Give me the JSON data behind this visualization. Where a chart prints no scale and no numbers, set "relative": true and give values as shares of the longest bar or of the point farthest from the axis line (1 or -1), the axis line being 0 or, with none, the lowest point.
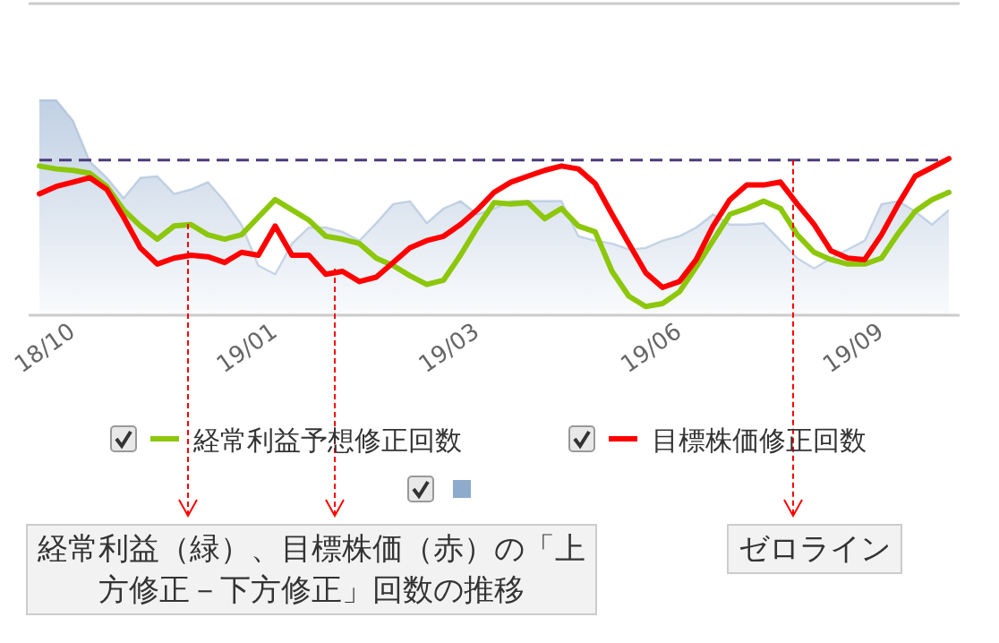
{
  "chart_data": {
    "type": "line",
    "relative": true,
    "legend": "bottom",
    "categories": [
      null,
      null,
      "18/10",
      null,
      null,
      null,
      null,
      null,
      null,
      null,
      null,
      null,
      null,
      null,
      "19/01",
      null,
      null,
      null,
      null,
      null,
      null,
      null,
      null,
      null,
      null,
      null,
      "19/03",
      null,
      null,
      null,
      null,
      null,
      null,
      null,
      null,
      null,
      null,
      null,
      "19/06",
      null,
      null,
      null,
      null,
      null,
      null,
      null,
      null,
      null,
      null,
      null,
      "19/09",
      null,
      null,
      null,
      null
    ],
    "series": [
      {
        "type": "area",
        "color": "#8eaacc",
        "values": [
          0.41,
          0.41,
          0.27,
          -0.01,
          -0.12,
          -0.26,
          -0.12,
          -0.11,
          -0.23,
          -0.2,
          -0.15,
          -0.28,
          -0.44,
          -0.72,
          -0.78,
          -0.57,
          -0.46,
          -0.46,
          -0.49,
          -0.55,
          -0.43,
          -0.3,
          -0.28,
          -0.43,
          -0.33,
          -0.28,
          -0.37,
          -0.33,
          -0.28,
          -0.28,
          -0.28,
          -0.28,
          -0.52,
          -0.55,
          -0.57,
          -0.61,
          -0.6,
          -0.55,
          -0.52,
          -0.46,
          -0.37,
          -0.44,
          -0.44,
          -0.43,
          -0.55,
          -0.67,
          -0.74,
          -0.67,
          -0.61,
          -0.55,
          -0.3,
          -0.28,
          -0.35,
          -0.44,
          -0.34
        ]
      },
      {
        "name": "経常利益予想修正回数",
        "color": "#8cc70a",
        "values": [
          -0.04,
          -0.06,
          -0.07,
          -0.09,
          -0.18,
          -0.34,
          -0.45,
          -0.54,
          -0.45,
          -0.44,
          -0.51,
          -0.54,
          -0.51,
          -0.39,
          -0.27,
          -0.34,
          -0.41,
          -0.52,
          -0.54,
          -0.57,
          -0.67,
          -0.72,
          -0.79,
          -0.85,
          -0.82,
          -0.65,
          -0.46,
          -0.29,
          -0.3,
          -0.29,
          -0.4,
          -0.33,
          -0.45,
          -0.49,
          -0.76,
          -0.93,
          -1,
          -0.98,
          -0.9,
          -0.73,
          -0.55,
          -0.37,
          -0.33,
          -0.28,
          -0.33,
          -0.51,
          -0.63,
          -0.68,
          -0.71,
          -0.71,
          -0.67,
          -0.5,
          -0.35,
          -0.27,
          -0.22
        ]
      },
      {
        "name": "目標株価修正回数",
        "color": "#ff0000",
        "values": [
          -0.23,
          -0.18,
          -0.15,
          -0.12,
          -0.2,
          -0.39,
          -0.6,
          -0.71,
          -0.67,
          -0.65,
          -0.66,
          -0.7,
          -0.63,
          -0.65,
          -0.45,
          -0.65,
          -0.65,
          -0.78,
          -0.76,
          -0.83,
          -0.8,
          -0.7,
          -0.6,
          -0.55,
          -0.52,
          -0.44,
          -0.34,
          -0.22,
          -0.15,
          -0.11,
          -0.07,
          -0.04,
          -0.06,
          -0.16,
          -0.37,
          -0.57,
          -0.77,
          -0.87,
          -0.83,
          -0.68,
          -0.45,
          -0.27,
          -0.17,
          -0.17,
          -0.15,
          -0.3,
          -0.44,
          -0.62,
          -0.67,
          -0.68,
          -0.51,
          -0.3,
          -0.11,
          -0.05,
          0.01
        ]
      }
    ],
    "ref_lines": [
      {
        "axis": "y",
        "value": 0,
        "color": "#4b3b7a",
        "line_style": "dashed"
      }
    ],
    "annotations": [
      "経常利益（緑）、目標株価（赤）の「上方修正－下方修正」回数の推移",
      "ゼロライン"
    ]
  }
}
